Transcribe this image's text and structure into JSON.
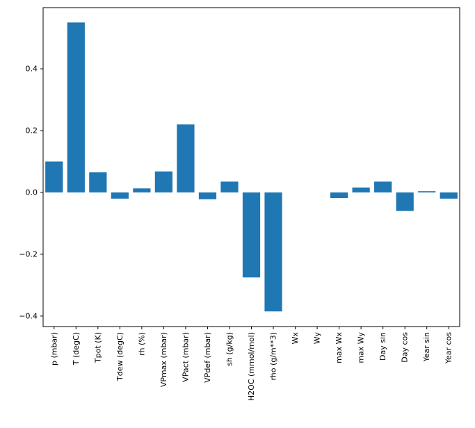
{
  "figure": {
    "background": "#ffffff"
  },
  "chart_data": {
    "type": "bar",
    "title": "",
    "xlabel": "",
    "ylabel": "",
    "categories": [
      "p (mbar)",
      "T (degC)",
      "Tpot (K)",
      "Tdew (degC)",
      "rh (%)",
      "VPmax (mbar)",
      "VPact (mbar)",
      "VPdef (mbar)",
      "sh (g/kg)",
      "H2OC (mmol/mol)",
      "rho (g/m**3)",
      "Wx",
      "Wy",
      "max Wx",
      "max Wy",
      "Day sin",
      "Day cos",
      "Year sin",
      "Year cos"
    ],
    "values": [
      0.1,
      0.55,
      0.065,
      -0.02,
      0.013,
      0.068,
      0.22,
      -0.022,
      0.035,
      -0.275,
      -0.385,
      0.0,
      0.0,
      -0.018,
      0.016,
      0.035,
      -0.06,
      0.004,
      -0.02
    ],
    "ylim": [
      -0.434,
      0.598
    ],
    "ytick_values": [
      -0.4,
      -0.2,
      0.0,
      0.2,
      0.4
    ],
    "ytick_labels": [
      "−0.4",
      "−0.2",
      "0.0",
      "0.2",
      "0.4"
    ],
    "bar_color": "#1f77b4",
    "axis_color": "#000000",
    "grid": false,
    "legend": null
  }
}
